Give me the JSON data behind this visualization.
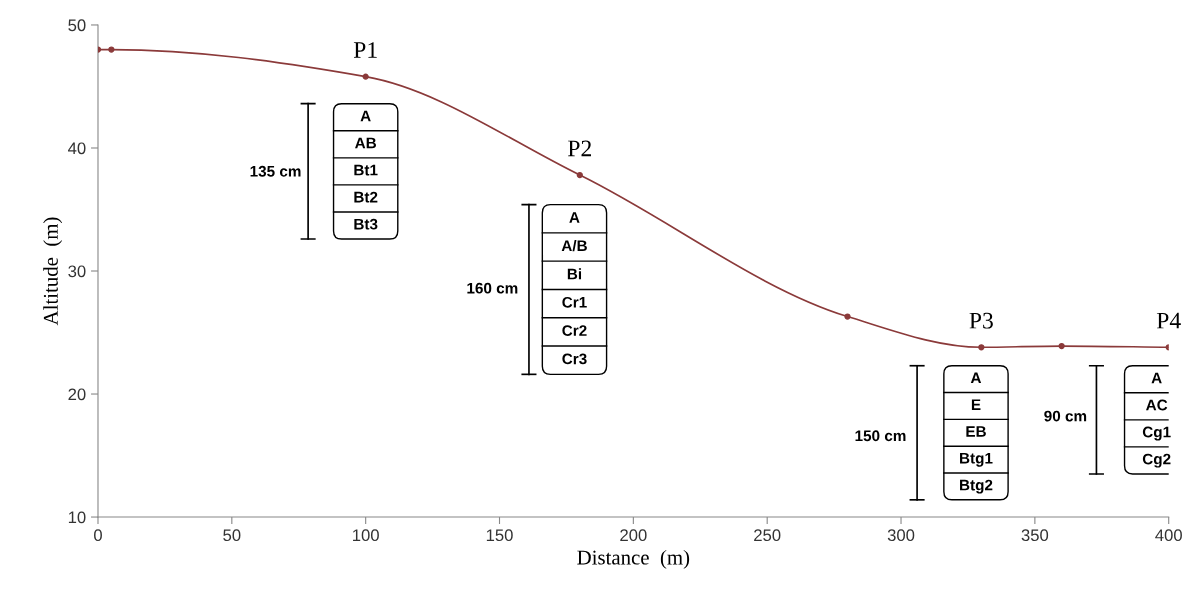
{
  "chart_data": {
    "type": "line",
    "xlabel": "Distance  (m)",
    "ylabel": "Altitude  (m)",
    "xlim": [
      0,
      400
    ],
    "ylim": [
      10,
      50
    ],
    "xticks": [
      0,
      50,
      100,
      150,
      200,
      250,
      300,
      350,
      400
    ],
    "yticks": [
      10,
      20,
      30,
      40,
      50
    ],
    "marker": "circle",
    "line_style": "solid",
    "series": [
      {
        "color": "#8b3a3a",
        "x": [
          0,
          5,
          100,
          180,
          280,
          330,
          360,
          400
        ],
        "values": [
          48,
          48,
          45.8,
          37.8,
          26.3,
          23.8,
          23.9,
          23.8
        ]
      }
    ],
    "annotations": [
      {
        "text": "P1",
        "x": 100,
        "y": 45.8
      },
      {
        "text": "P2",
        "x": 180,
        "y": 37.8
      },
      {
        "text": "P3",
        "x": 330,
        "y": 23.8
      },
      {
        "text": "P4",
        "x": 400,
        "y": 23.8
      },
      "135 cm",
      "A",
      "AB",
      "Bt1",
      "Bt2",
      "Bt3",
      "160 cm",
      "A",
      "A/B",
      "Bi",
      "Cr1",
      "Cr2",
      "Cr3",
      "150 cm",
      "A",
      "E",
      "EB",
      "Btg1",
      "Btg2",
      "90 cm",
      "A",
      "AC",
      "Cg1",
      "Cg2"
    ]
  }
}
